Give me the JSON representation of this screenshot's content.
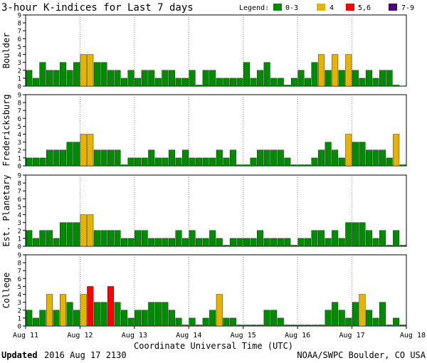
{
  "chart_data": {
    "type": "bar",
    "title": "3-hour K-indices for Last 7 days",
    "legend": {
      "label": "Legend:",
      "entries": [
        {
          "label": "0-3",
          "color": "#008c00"
        },
        {
          "label": "4",
          "color": "#e6b400"
        },
        {
          "label": "5,6",
          "color": "#ff0000"
        },
        {
          "label": "7-9",
          "color": "#4b0082"
        }
      ]
    },
    "ylim": [
      0,
      9
    ],
    "yticks": [
      "0",
      "1",
      "2",
      "3",
      "4",
      "5",
      "6",
      "7",
      "8",
      "9"
    ],
    "xlabel": "Coordinate Universal Time (UTC)",
    "xtick_labels": [
      "Aug 11",
      "Aug 12",
      "Aug 13",
      "Aug 14",
      "Aug 15",
      "Aug 16",
      "Aug 17",
      "Aug 18"
    ],
    "intervals_per_day": 8,
    "series": [
      {
        "name": "Boulder",
        "values": [
          2,
          1,
          3,
          2,
          2,
          3,
          2,
          3,
          4,
          4,
          3,
          3,
          2,
          2,
          1,
          2,
          1,
          2,
          2,
          1,
          2,
          2,
          1,
          1,
          2,
          0,
          2,
          2,
          1,
          1,
          1,
          1,
          3,
          1,
          2,
          3,
          1,
          1,
          0,
          1,
          2,
          1,
          3,
          4,
          2,
          4,
          2,
          4,
          2,
          1,
          2,
          1,
          2,
          2,
          0
        ]
      },
      {
        "name": "Fredericksburg",
        "values": [
          1,
          1,
          1,
          2,
          2,
          2,
          3,
          3,
          4,
          4,
          2,
          2,
          2,
          2,
          0,
          1,
          1,
          1,
          2,
          1,
          1,
          2,
          1,
          2,
          1,
          1,
          1,
          1,
          2,
          1,
          2,
          0,
          0,
          1,
          2,
          2,
          2,
          2,
          1,
          0,
          0,
          0,
          1,
          2,
          3,
          2,
          1,
          4,
          3,
          3,
          2,
          2,
          2,
          1,
          4,
          0
        ]
      },
      {
        "name": "Est. Planetary",
        "values": [
          2,
          1,
          2,
          2,
          1,
          3,
          3,
          3,
          4,
          4,
          2,
          2,
          2,
          2,
          1,
          1,
          2,
          2,
          1,
          1,
          1,
          1,
          2,
          1,
          2,
          1,
          1,
          2,
          1,
          0,
          1,
          1,
          1,
          1,
          2,
          1,
          1,
          1,
          1,
          0,
          1,
          1,
          2,
          2,
          1,
          2,
          1,
          3,
          3,
          3,
          2,
          1,
          2,
          0,
          2,
          0
        ]
      },
      {
        "name": "College",
        "values": [
          2,
          1,
          2,
          4,
          2,
          4,
          3,
          2,
          4,
          5,
          3,
          3,
          5,
          3,
          2,
          1,
          2,
          2,
          3,
          3,
          3,
          2,
          1,
          0,
          1,
          0,
          1,
          2,
          4,
          1,
          1,
          0,
          0,
          0,
          0,
          2,
          2,
          1,
          0,
          0,
          0,
          0,
          0,
          0,
          2,
          3,
          2,
          1,
          3,
          4,
          2,
          1,
          3,
          0,
          1,
          0
        ]
      }
    ],
    "footer_updated_label": "Updated",
    "footer_updated_value": "2016 Aug 17 2130",
    "footer_source": "NOAA/SWPC Boulder, CO USA"
  }
}
